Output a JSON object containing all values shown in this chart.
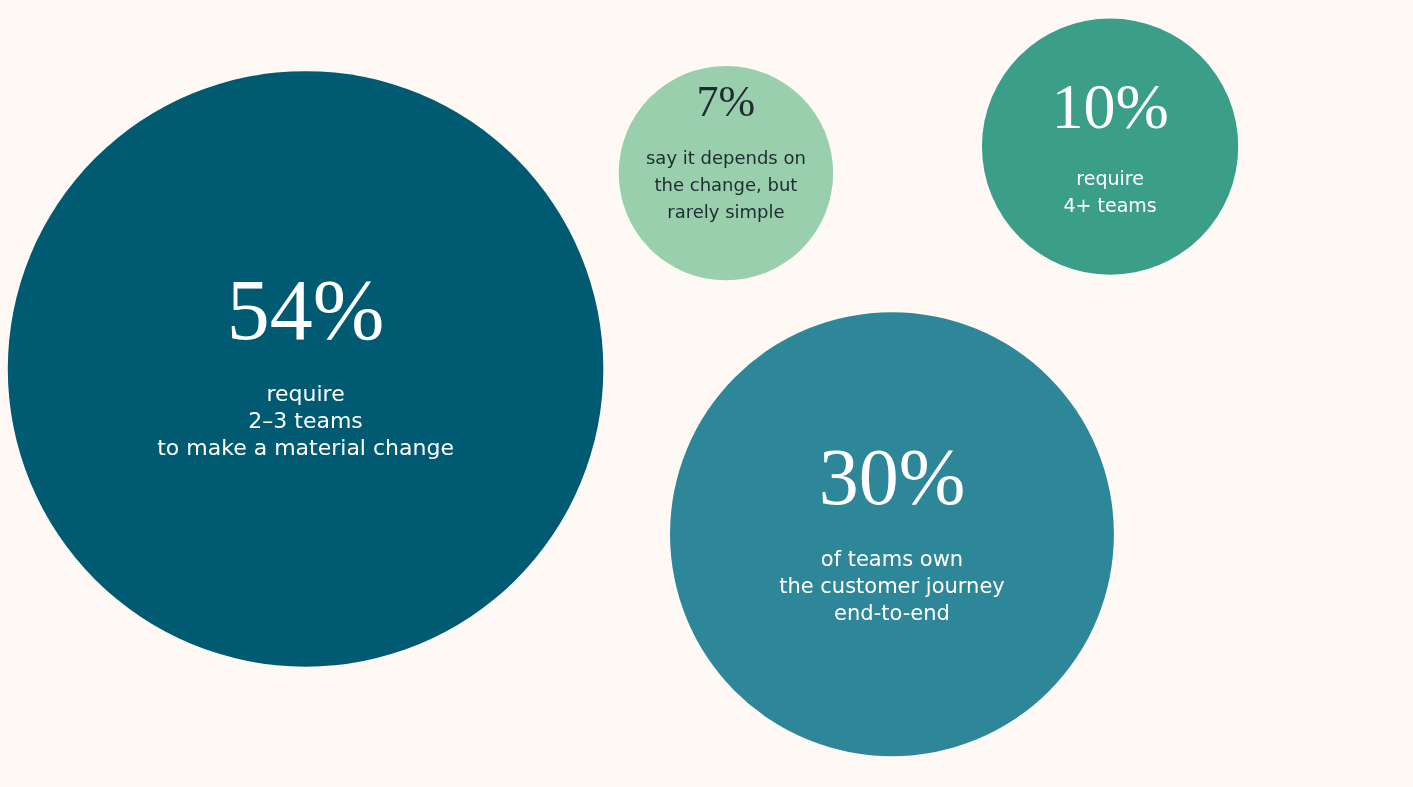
{
  "chart_data": {
    "type": "other",
    "categories": [
      "require\n2–3 teams\nto make a material change",
      "say it depends on\nthe change, but\nrarely simple",
      "require\n4+ teams",
      "of teams own\nthe customer journey\nend-to-end"
    ],
    "values": [
      54,
      7,
      10,
      30
    ],
    "value_labels": [
      "54%",
      "7%",
      "10%",
      "30%"
    ],
    "colors": [
      "#005a72",
      "#99cfad",
      "#3b9e89",
      "#2e8799"
    ]
  }
}
